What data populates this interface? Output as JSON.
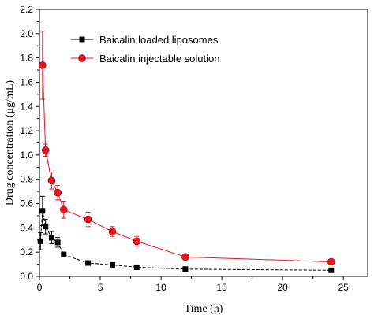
{
  "chart_data": {
    "type": "line",
    "xlabel": "Time (h)",
    "ylabel": "Drug concentration (μg/mL)",
    "xlim": [
      0,
      27
    ],
    "ylim": [
      0,
      2.2
    ],
    "xticks": [
      "0",
      "5",
      "10",
      "15",
      "20",
      "25"
    ],
    "yticks": [
      "0.0",
      "0.2",
      "0.4",
      "0.6",
      "0.8",
      "1.0",
      "1.2",
      "1.4",
      "1.6",
      "1.8",
      "2.0",
      "2.2"
    ],
    "legend_position": "top-center",
    "series": [
      {
        "name": "Baicalin loaded liposomes",
        "color": "#000000",
        "marker": "square",
        "x": [
          0.083,
          0.25,
          0.5,
          1,
          1.5,
          2,
          4,
          6,
          8,
          12,
          24
        ],
        "y": [
          0.29,
          0.54,
          0.41,
          0.32,
          0.28,
          0.18,
          0.11,
          0.095,
          0.075,
          0.06,
          0.05
        ],
        "err": [
          0.07,
          0.12,
          0.06,
          0.05,
          0.04,
          0.02,
          0.015,
          0.01,
          0.01,
          0.01,
          0.01
        ]
      },
      {
        "name": "Baicalin injectable solution",
        "color": "#e8141e",
        "marker": "circle",
        "x": [
          0.25,
          0.5,
          1,
          1.5,
          2,
          4,
          6,
          8,
          12,
          24
        ],
        "y": [
          1.74,
          1.04,
          0.79,
          0.69,
          0.55,
          0.47,
          0.37,
          0.29,
          0.16,
          0.12
        ],
        "err": [
          0.28,
          0.05,
          0.07,
          0.06,
          0.07,
          0.06,
          0.04,
          0.04,
          0.015,
          0.02
        ]
      }
    ]
  }
}
